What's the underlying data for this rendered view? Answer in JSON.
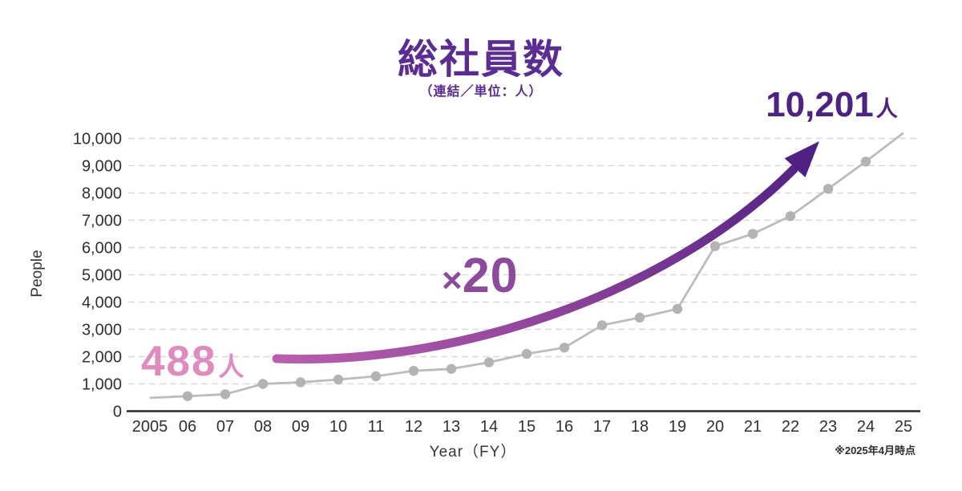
{
  "header": {
    "title": "総社員数",
    "subtitle": "（連結／単位：人）"
  },
  "annotations": {
    "start_value": "488",
    "start_unit": "人",
    "end_value": "10,201",
    "end_unit": "人",
    "multiplier_sign": "×",
    "multiplier_value": "20",
    "footnote": "※2025年4月時点"
  },
  "chart_data": {
    "type": "line",
    "title": "総社員数",
    "subtitle": "（連結／単位：人）",
    "x": [
      "2005",
      "06",
      "07",
      "08",
      "09",
      "10",
      "11",
      "12",
      "13",
      "14",
      "15",
      "16",
      "17",
      "18",
      "19",
      "20",
      "21",
      "22",
      "23",
      "24",
      "25"
    ],
    "series": [
      {
        "name": "総社員数（連結）",
        "values": [
          488,
          550,
          620,
          1000,
          1060,
          1160,
          1280,
          1480,
          1550,
          1790,
          2100,
          2330,
          3150,
          3430,
          3750,
          6050,
          6500,
          7150,
          8150,
          9150,
          10201
        ]
      }
    ],
    "xlabel": "Year（FY）",
    "ylabel": "People",
    "ylim": [
      0,
      10000
    ],
    "ytick_interval": 1000,
    "y_tick_labels": [
      "0",
      "1,000",
      "2,000",
      "3,000",
      "4,000",
      "5,000",
      "6,000",
      "7,000",
      "8,000",
      "9,000",
      "10,000"
    ],
    "grid": "horizontal-dashed",
    "legend": "none",
    "notes": "Gray line with round markers for FY2006-FY2024; endpoints FY2005 (488人) and FY2025 (10,201人) drawn without markers; thick purple gradient growth arrow labeled ×20 from ~2,000 level up to 10,201人 label."
  },
  "colors": {
    "title": "#5b2c92",
    "subtitle": "#5b2c92",
    "end_annotation": "#4b2383",
    "start_annotation": "#e08bbd",
    "multiplier": "#8c4a9c",
    "arrow_start": "#b95fae",
    "arrow_mid": "#8a4299",
    "arrow_end": "#4f2182",
    "line": "#bcbcbc",
    "marker": "#b3b3b3",
    "grid": "#d9d9d9",
    "axis": "#2b2422",
    "tick_text": "#332e2e"
  }
}
